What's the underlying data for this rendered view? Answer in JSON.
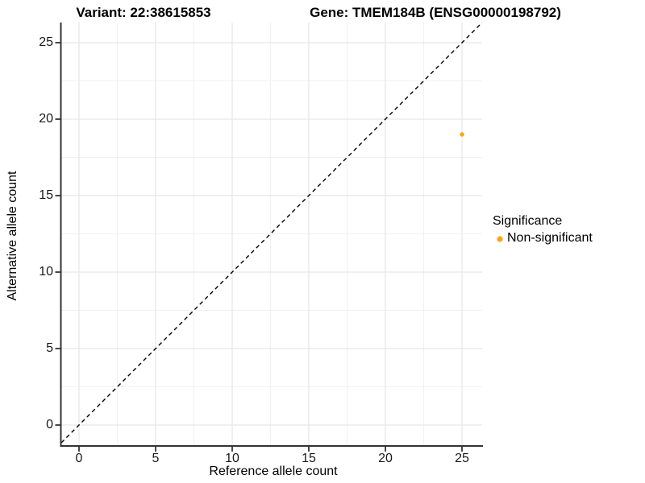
{
  "titles": {
    "variant": "Variant: 22:38615853",
    "gene": "Gene: TMEM184B (ENSG00000198792)"
  },
  "chart_data": {
    "type": "scatter",
    "title": "Variant: 22:38615853   Gene: TMEM184B (ENSG00000198792)",
    "xlabel": "Reference allele count",
    "ylabel": "Alternative allele count",
    "xlim": [
      -1.3,
      26.3
    ],
    "ylim": [
      -1.3,
      26.3
    ],
    "x_ticks": [
      "0",
      "5",
      "10",
      "15",
      "20",
      "25"
    ],
    "y_ticks": [
      "0",
      "5",
      "10",
      "15",
      "20",
      "25"
    ],
    "grid": "major and minor gridlines, light gray, white panel",
    "reference_line": {
      "type": "abline",
      "slope": 1,
      "intercept": 0,
      "style": "dashed",
      "color": "#000000"
    },
    "series": [
      {
        "name": "Non-significant",
        "color": "#FFA411",
        "points": [
          {
            "x": 25,
            "y": 19
          }
        ]
      }
    ],
    "legend": {
      "title": "Significance",
      "position": "right",
      "entries": [
        {
          "label": "Non-significant",
          "color": "#FFA411"
        }
      ]
    }
  }
}
